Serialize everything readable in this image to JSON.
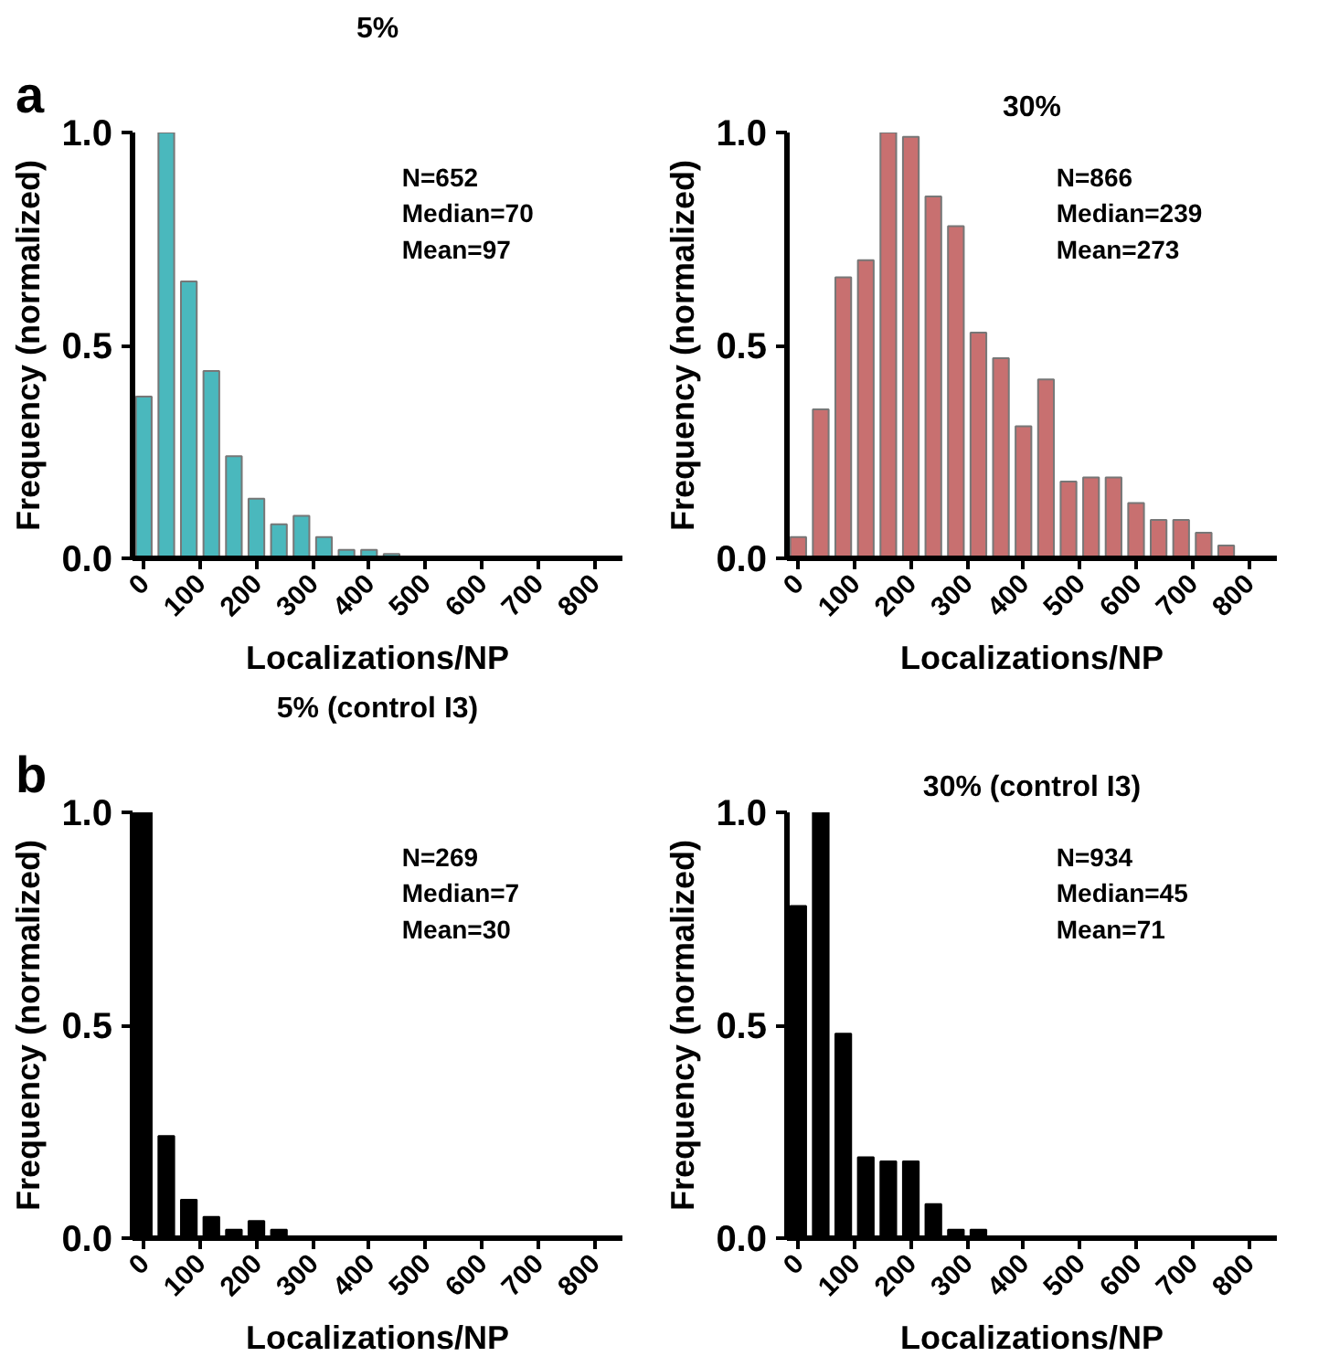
{
  "chart_data": [
    {
      "type": "histogram",
      "title": "5%",
      "xlabel": "Localizations/NP",
      "ylabel": "Frequency (normalized)",
      "color": "#4ab8bd",
      "bins": [
        -20,
        20,
        60,
        100,
        140,
        180,
        220,
        260,
        300,
        340,
        380,
        420,
        460
      ],
      "values": [
        0.38,
        1.0,
        0.65,
        0.44,
        0.24,
        0.14,
        0.08,
        0.1,
        0.05,
        0.02,
        0.02,
        0.01
      ],
      "xlim": [
        -20,
        850
      ],
      "ylim": [
        0,
        1.0
      ],
      "xticks": [
        0,
        100,
        200,
        300,
        400,
        500,
        600,
        700,
        800
      ],
      "yticks": [
        {
          "value": 0,
          "label": "0.0"
        },
        {
          "value": 0.5,
          "label": "0.5"
        },
        {
          "value": 1,
          "label": "1.0"
        }
      ],
      "grid": false,
      "annotations": [
        "a",
        "N=652",
        "Median=70",
        "Mean=97"
      ]
    },
    {
      "type": "histogram",
      "title": "30%",
      "xlabel": "Localizations/NP",
      "ylabel": "Frequency (normalized)",
      "color": "#c87070",
      "bins": [
        -20,
        20,
        60,
        100,
        140,
        180,
        220,
        260,
        300,
        340,
        380,
        420,
        460,
        500,
        540,
        580,
        620,
        660,
        700,
        740,
        780
      ],
      "values": [
        0.05,
        0.35,
        0.66,
        0.7,
        1.0,
        0.99,
        0.85,
        0.78,
        0.53,
        0.47,
        0.31,
        0.42,
        0.18,
        0.19,
        0.19,
        0.13,
        0.09,
        0.09,
        0.06,
        0.03
      ],
      "xlim": [
        -20,
        850
      ],
      "ylim": [
        0,
        1.0
      ],
      "xticks": [
        0,
        100,
        200,
        300,
        400,
        500,
        600,
        700,
        800
      ],
      "yticks": [
        {
          "value": 0,
          "label": "0.0"
        },
        {
          "value": 0.5,
          "label": "0.5"
        },
        {
          "value": 1,
          "label": "1.0"
        }
      ],
      "grid": false,
      "annotations": [
        "N=866",
        "Median=239",
        "Mean=273"
      ]
    },
    {
      "type": "histogram",
      "title": "5% (control I3)",
      "xlabel": "Localizations/NP",
      "ylabel": "Frequency (normalized)",
      "color": "#000000",
      "bins": [
        -20,
        20,
        60,
        100,
        140,
        180,
        220,
        260
      ],
      "values": [
        1.0,
        0.24,
        0.09,
        0.05,
        0.02,
        0.04,
        0.02
      ],
      "xlim": [
        -20,
        850
      ],
      "ylim": [
        0,
        1.0
      ],
      "xticks": [
        0,
        100,
        200,
        300,
        400,
        500,
        600,
        700,
        800
      ],
      "yticks": [
        {
          "value": 0,
          "label": "0.0"
        },
        {
          "value": 0.5,
          "label": "0.5"
        },
        {
          "value": 1,
          "label": "1.0"
        }
      ],
      "grid": false,
      "annotations": [
        "b",
        "N=269",
        "Median=7",
        "Mean=30"
      ]
    },
    {
      "type": "histogram",
      "title": "30% (control I3)",
      "xlabel": "Localizations/NP",
      "ylabel": "Frequency (normalized)",
      "color": "#000000",
      "bins": [
        -20,
        20,
        60,
        100,
        140,
        180,
        220,
        260,
        300,
        340
      ],
      "values": [
        0.78,
        1.0,
        0.48,
        0.19,
        0.18,
        0.18,
        0.08,
        0.02,
        0.02
      ],
      "xlim": [
        -20,
        850
      ],
      "ylim": [
        0,
        1.0
      ],
      "xticks": [
        0,
        100,
        200,
        300,
        400,
        500,
        600,
        700,
        800
      ],
      "yticks": [
        {
          "value": 0,
          "label": "0.0"
        },
        {
          "value": 0.5,
          "label": "0.5"
        },
        {
          "value": 1,
          "label": "1.0"
        }
      ],
      "grid": false,
      "annotations": [
        "N=934",
        "Median=45",
        "Mean=71"
      ]
    }
  ]
}
